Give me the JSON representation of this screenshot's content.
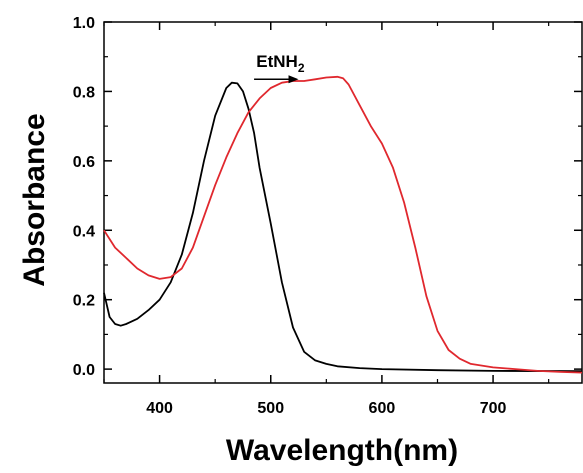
{
  "chart_data": {
    "type": "line",
    "xlabel": "Wavelength(nm)",
    "ylabel": "Absorbance",
    "xlim": [
      350,
      780
    ],
    "ylim": [
      -0.04,
      1.0
    ],
    "x_ticks": [
      400,
      500,
      600,
      700
    ],
    "x_tick_labels": [
      "400",
      "500",
      "600",
      "700"
    ],
    "y_ticks": [
      0.0,
      0.2,
      0.4,
      0.6,
      0.8,
      1.0
    ],
    "y_tick_labels": [
      "0.0",
      "0.2",
      "0.4",
      "0.6",
      "0.8",
      "1.0"
    ],
    "grid": false,
    "legend": "none",
    "annotation": {
      "text_main": "EtNH",
      "text_sub": "2",
      "arrow_from": [
        485,
        0.835
      ],
      "arrow_to": [
        525,
        0.835
      ],
      "text_anchor": [
        487,
        0.87
      ]
    },
    "series": [
      {
        "color": "#000000",
        "x": [
          350,
          355,
          360,
          365,
          370,
          380,
          390,
          400,
          410,
          420,
          430,
          440,
          450,
          460,
          465,
          470,
          475,
          480,
          485,
          490,
          500,
          510,
          520,
          530,
          540,
          550,
          560,
          580,
          600,
          650,
          700,
          780
        ],
        "y": [
          0.22,
          0.15,
          0.13,
          0.125,
          0.13,
          0.145,
          0.17,
          0.2,
          0.25,
          0.33,
          0.45,
          0.6,
          0.73,
          0.81,
          0.825,
          0.823,
          0.8,
          0.75,
          0.68,
          0.58,
          0.42,
          0.25,
          0.12,
          0.05,
          0.025,
          0.015,
          0.008,
          0.003,
          0.0,
          -0.003,
          -0.005,
          -0.006
        ]
      },
      {
        "color": "#e0282e",
        "x": [
          350,
          360,
          370,
          380,
          390,
          400,
          410,
          420,
          430,
          440,
          450,
          460,
          470,
          480,
          490,
          500,
          510,
          520,
          530,
          540,
          550,
          560,
          565,
          570,
          580,
          590,
          600,
          610,
          620,
          630,
          640,
          650,
          660,
          670,
          680,
          700,
          720,
          740,
          760,
          780
        ],
        "y": [
          0.4,
          0.35,
          0.32,
          0.29,
          0.27,
          0.26,
          0.265,
          0.29,
          0.35,
          0.44,
          0.53,
          0.61,
          0.68,
          0.74,
          0.78,
          0.81,
          0.825,
          0.83,
          0.83,
          0.835,
          0.84,
          0.842,
          0.838,
          0.82,
          0.76,
          0.7,
          0.65,
          0.58,
          0.48,
          0.35,
          0.21,
          0.11,
          0.055,
          0.03,
          0.015,
          0.005,
          0.0,
          -0.005,
          -0.008,
          -0.01
        ]
      }
    ]
  }
}
